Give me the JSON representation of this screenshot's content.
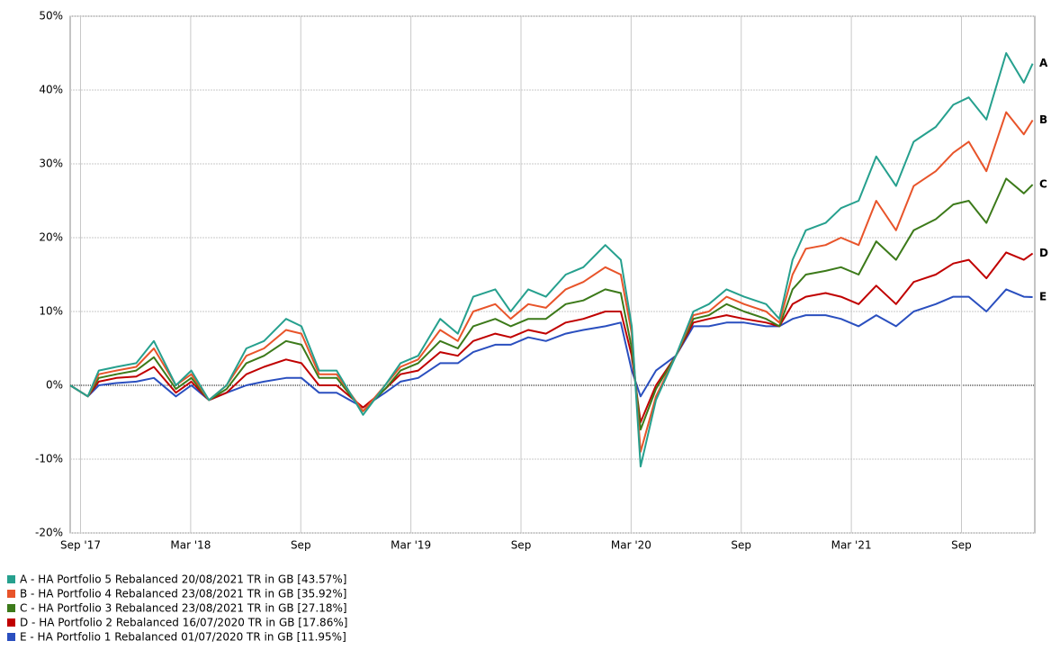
{
  "chart_data": {
    "type": "line",
    "x": [
      2017.62,
      2017.7,
      2017.75,
      2017.83,
      2017.92,
      2018.0,
      2018.1,
      2018.17,
      2018.25,
      2018.33,
      2018.42,
      2018.5,
      2018.6,
      2018.67,
      2018.75,
      2018.83,
      2018.95,
      2019.05,
      2019.12,
      2019.2,
      2019.3,
      2019.38,
      2019.45,
      2019.55,
      2019.62,
      2019.7,
      2019.78,
      2019.87,
      2019.95,
      2020.05,
      2020.12,
      2020.17,
      2020.21,
      2020.28,
      2020.37,
      2020.45,
      2020.52,
      2020.6,
      2020.68,
      2020.78,
      2020.84,
      2020.9,
      2020.96,
      2021.05,
      2021.12,
      2021.2,
      2021.28,
      2021.37,
      2021.45,
      2021.55,
      2021.63,
      2021.7,
      2021.78,
      2021.87,
      2021.95,
      2021.99
    ],
    "series": [
      {
        "name": "A - HA Portfolio 5 Rebalanced 20/08/2021 TR in GB [43.57%]",
        "label": "A",
        "color": "#26a08e",
        "values": [
          0,
          -1.5,
          2,
          2.5,
          3,
          6,
          0,
          2,
          -2,
          0,
          5,
          6,
          9,
          8,
          2,
          2,
          -4,
          0,
          3,
          4,
          9,
          7,
          12,
          13,
          10,
          13,
          12,
          15,
          16,
          19,
          17,
          8,
          -11,
          -2,
          4,
          10,
          11,
          13,
          12,
          11,
          9,
          17,
          21,
          22,
          24,
          25,
          31,
          27,
          33,
          35,
          38,
          39,
          36,
          45,
          41,
          43.57
        ]
      },
      {
        "name": "B - HA Portfolio 4 Rebalanced 23/08/2021 TR in GB [35.92%]",
        "label": "B",
        "color": "#e8542a",
        "values": [
          0,
          -1.5,
          1.5,
          2,
          2.5,
          5,
          0,
          1.5,
          -2,
          0,
          4,
          5,
          7.5,
          7,
          1.5,
          1.5,
          -3.5,
          0,
          2.5,
          3.5,
          7.5,
          6,
          10,
          11,
          9,
          11,
          10.5,
          13,
          14,
          16,
          15,
          7,
          -9,
          -1.5,
          4,
          9.5,
          10,
          12,
          11,
          10,
          8.5,
          15,
          18.5,
          19,
          20,
          19,
          25,
          21,
          27,
          29,
          31.5,
          33,
          29,
          37,
          34,
          35.92
        ]
      },
      {
        "name": "C - HA Portfolio 3 Rebalanced 23/08/2021 TR in GB [27.18%]",
        "label": "C",
        "color": "#3c7a1a",
        "values": [
          0,
          -1.5,
          1,
          1.5,
          2,
          3.8,
          -0.5,
          1,
          -2,
          -0.5,
          3,
          4,
          6,
          5.5,
          1,
          1,
          -3.5,
          -0.5,
          2,
          3,
          6,
          5,
          8,
          9,
          8,
          9,
          9,
          11,
          11.5,
          13,
          12.5,
          5,
          -6,
          -0.5,
          4,
          9,
          9.5,
          11,
          10,
          9,
          8,
          13,
          15,
          15.5,
          16,
          15,
          19.5,
          17,
          21,
          22.5,
          24.5,
          25,
          22,
          28,
          26,
          27.18
        ]
      },
      {
        "name": "D - HA Portfolio 2 Rebalanced 16/07/2020 TR in GB [17.86%]",
        "label": "D",
        "color": "#c00000",
        "values": [
          0,
          -1.5,
          0.5,
          1,
          1.2,
          2.5,
          -1,
          0.5,
          -2,
          -1,
          1.5,
          2.5,
          3.5,
          3,
          0,
          0,
          -3,
          -0.5,
          1.5,
          2,
          4.5,
          4,
          6,
          7,
          6.5,
          7.5,
          7,
          8.5,
          9,
          10,
          10,
          4,
          -5,
          0,
          4,
          8.5,
          9,
          9.5,
          9,
          8.5,
          8,
          11,
          12,
          12.5,
          12,
          11,
          13.5,
          11,
          14,
          15,
          16.5,
          17,
          14.5,
          18,
          17,
          17.86
        ]
      },
      {
        "name": "E - HA Portfolio 1 Rebalanced 01/07/2020 TR in GB [11.95%]",
        "label": "E",
        "color": "#2a4fbf",
        "values": [
          0,
          -1.5,
          0,
          0.3,
          0.5,
          1,
          -1.5,
          0,
          -2,
          -1,
          0,
          0.5,
          1,
          1,
          -1,
          -1,
          -3,
          -1,
          0.5,
          1,
          3,
          3,
          4.5,
          5.5,
          5.5,
          6.5,
          6,
          7,
          7.5,
          8,
          8.5,
          2,
          -1.5,
          2,
          4,
          8,
          8,
          8.5,
          8.5,
          8,
          8,
          9,
          9.5,
          9.5,
          9,
          8,
          9.5,
          8,
          10,
          11,
          12,
          12,
          10,
          13,
          12,
          11.95
        ]
      }
    ],
    "xlim": [
      2017.62,
      2022.0
    ],
    "xticks": [
      {
        "value": 2017.667,
        "label": "Sep '17"
      },
      {
        "value": 2018.167,
        "label": "Mar '18"
      },
      {
        "value": 2018.667,
        "label": "Sep"
      },
      {
        "value": 2019.167,
        "label": "Mar '19"
      },
      {
        "value": 2019.667,
        "label": "Sep"
      },
      {
        "value": 2020.167,
        "label": "Mar '20"
      },
      {
        "value": 2020.667,
        "label": "Sep"
      },
      {
        "value": 2021.167,
        "label": "Mar '21"
      },
      {
        "value": 2021.667,
        "label": "Sep"
      }
    ],
    "ylim": [
      -20,
      50
    ],
    "yticks": [
      {
        "value": -20,
        "label": "-20%"
      },
      {
        "value": -10,
        "label": "-10%"
      },
      {
        "value": 0,
        "label": "0%"
      },
      {
        "value": 10,
        "label": "10%"
      },
      {
        "value": 20,
        "label": "20%"
      },
      {
        "value": 30,
        "label": "30%"
      },
      {
        "value": 40,
        "label": "40%"
      },
      {
        "value": 50,
        "label": "50%"
      }
    ],
    "grid": true
  }
}
